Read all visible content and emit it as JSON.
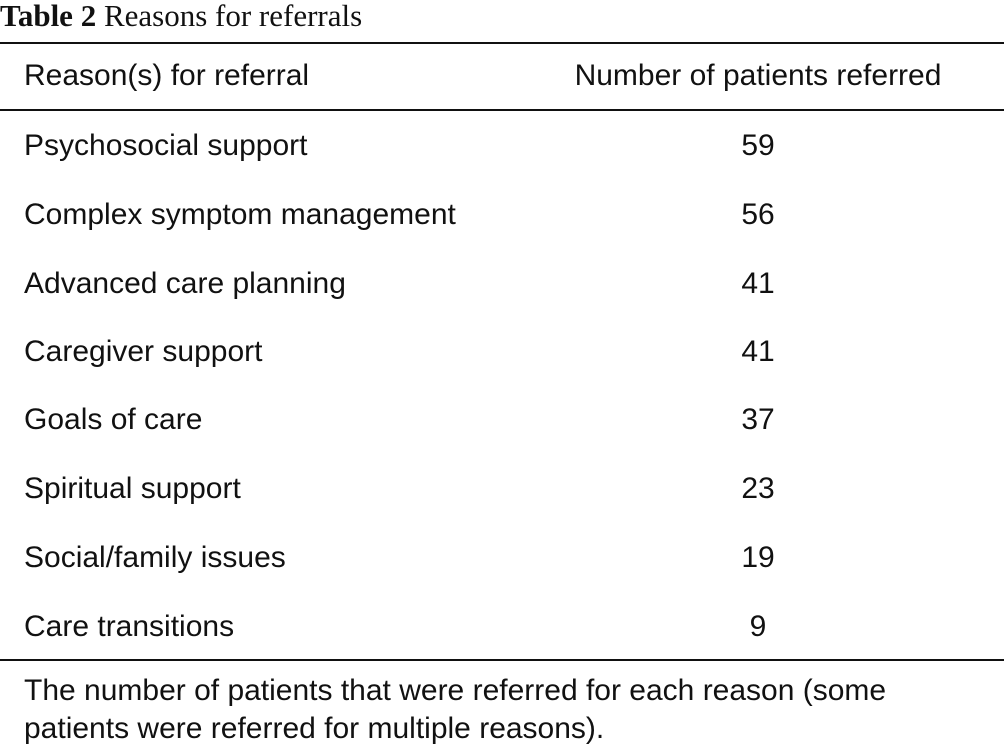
{
  "caption": {
    "label": "Table 2",
    "title": "Reasons for referrals"
  },
  "table": {
    "headers": {
      "reason": "Reason(s) for referral",
      "count": "Number of patients referred"
    },
    "rows": [
      {
        "reason": "Psychosocial support",
        "count": "59"
      },
      {
        "reason": "Complex symptom management",
        "count": "56"
      },
      {
        "reason": "Advanced care planning",
        "count": "41"
      },
      {
        "reason": "Caregiver support",
        "count": "41"
      },
      {
        "reason": "Goals of care",
        "count": "37"
      },
      {
        "reason": "Spiritual support",
        "count": "23"
      },
      {
        "reason": "Social/family issues",
        "count": "19"
      },
      {
        "reason": "Care transitions",
        "count": "9"
      }
    ]
  },
  "footnote": "The number of patients that were referred for each reason (some patients were referred for multiple reasons)."
}
